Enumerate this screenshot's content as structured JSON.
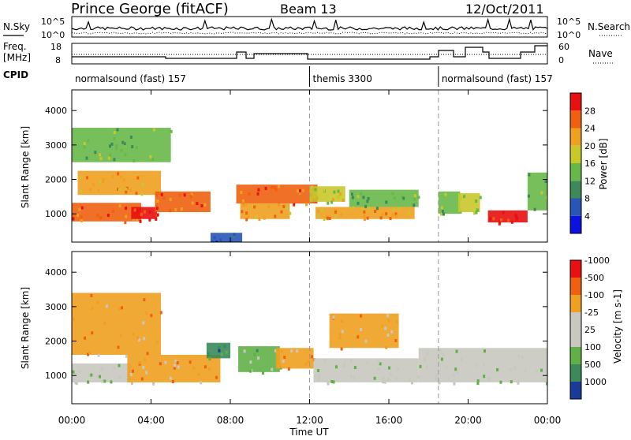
{
  "header": {
    "station": "Prince George (fitACF)",
    "beam": "Beam 13",
    "date": "12/Oct/2011"
  },
  "top_panels": {
    "nsky_label": "N.Sky",
    "nsky_ticks": [
      "10^5",
      "10^0"
    ],
    "nsearch_label": "N.Search",
    "nsearch_ticks": [
      "10^5",
      "10^0"
    ],
    "freq_label": "Freq.",
    "freq_unit": "[MHz]",
    "freq_ticks": [
      "18",
      "8"
    ],
    "nave_label": "Nave",
    "nave_ticks": [
      "60",
      "0"
    ],
    "cpid_label": "CPID",
    "cpid_segments": [
      {
        "label": "normalsound (fast) 157",
        "start_hr": 0.0
      },
      {
        "label": "themis 3300",
        "start_hr": 12.0
      },
      {
        "label": "normalsound (fast) 157",
        "start_hr": 18.5
      }
    ]
  },
  "chart_data": [
    {
      "type": "heatmap",
      "name": "power",
      "ylabel": "Slant Range [km]",
      "yticks": [
        "1000",
        "2000",
        "3000",
        "4000"
      ],
      "ylim": [
        180,
        4600
      ],
      "colorbar_label": "Power [dB]",
      "colorbar_ticks": [
        "4",
        "8",
        "12",
        "16",
        "20",
        "24",
        "28"
      ],
      "colors": [
        "#0a12e0",
        "#2a55b8",
        "#3c8a5a",
        "#68b848",
        "#c8c82a",
        "#f0a020",
        "#f06010",
        "#e81010"
      ],
      "bands": [
        {
          "start": 0.0,
          "end": 3.5,
          "range": [
            780,
            1320
          ],
          "level": 6
        },
        {
          "start": 0.3,
          "end": 4.5,
          "range": [
            1550,
            2250
          ],
          "level": 5
        },
        {
          "start": 3.0,
          "end": 4.3,
          "range": [
            850,
            1200
          ],
          "level": 7
        },
        {
          "start": 4.2,
          "end": 7.0,
          "range": [
            1050,
            1650
          ],
          "level": 6
        },
        {
          "start": 8.3,
          "end": 12.4,
          "range": [
            1300,
            1850
          ],
          "level": 6
        },
        {
          "start": 8.5,
          "end": 11.0,
          "range": [
            850,
            1300
          ],
          "level": 5
        },
        {
          "start": 12.0,
          "end": 13.8,
          "range": [
            1350,
            1800
          ],
          "level": 4
        },
        {
          "start": 12.3,
          "end": 17.3,
          "range": [
            850,
            1200
          ],
          "level": 5
        },
        {
          "start": 14.0,
          "end": 17.5,
          "range": [
            1200,
            1700
          ],
          "level": 3
        },
        {
          "start": 18.5,
          "end": 19.6,
          "range": [
            1000,
            1650
          ],
          "level": 3
        },
        {
          "start": 19.5,
          "end": 20.6,
          "range": [
            1050,
            1600
          ],
          "level": 4
        },
        {
          "start": 21.0,
          "end": 23.0,
          "range": [
            750,
            1100
          ],
          "level": 7
        },
        {
          "start": 23.0,
          "end": 24.0,
          "range": [
            1100,
            2200
          ],
          "level": 3
        },
        {
          "start": 0.0,
          "end": 5.0,
          "range": [
            2500,
            3500
          ],
          "level": 3
        },
        {
          "start": 7.0,
          "end": 8.6,
          "range": [
            180,
            450
          ],
          "level": 1
        }
      ]
    },
    {
      "type": "heatmap",
      "name": "velocity",
      "ylabel": "Slant Range [km]",
      "yticks": [
        "1000",
        "2000",
        "3000",
        "4000"
      ],
      "ylim": [
        180,
        4600
      ],
      "colorbar_label": "Velocity [m s-1]",
      "colorbar_ticks": [
        "1000",
        "500",
        "100",
        "25",
        "-25",
        "-100",
        "-500",
        "-1000"
      ],
      "colors": [
        "#1a3a9a",
        "#3a8a5a",
        "#60b048",
        "#c8c8c0",
        "#c8c8c0",
        "#f0a020",
        "#f06010",
        "#e81010"
      ],
      "bands": [
        {
          "start": 0.0,
          "end": 3.0,
          "range": [
            800,
            1350
          ],
          "level": 3
        },
        {
          "start": 2.8,
          "end": 7.5,
          "range": [
            800,
            1600
          ],
          "level": 5
        },
        {
          "start": 6.8,
          "end": 8.0,
          "range": [
            1500,
            1950
          ],
          "level": 1
        },
        {
          "start": 8.4,
          "end": 10.5,
          "range": [
            1100,
            1850
          ],
          "level": 2
        },
        {
          "start": 10.3,
          "end": 12.2,
          "range": [
            1200,
            1800
          ],
          "level": 5
        },
        {
          "start": 12.2,
          "end": 17.5,
          "range": [
            800,
            1500
          ],
          "level": 3
        },
        {
          "start": 17.5,
          "end": 24.0,
          "range": [
            800,
            1800
          ],
          "level": 3
        },
        {
          "start": 0.0,
          "end": 4.5,
          "range": [
            1600,
            3400
          ],
          "level": 5
        },
        {
          "start": 13.0,
          "end": 16.5,
          "range": [
            1800,
            2800
          ],
          "level": 5
        }
      ]
    }
  ],
  "x_axis": {
    "ticks": [
      "00:00",
      "04:00",
      "08:00",
      "12:00",
      "16:00",
      "20:00",
      "00:00"
    ],
    "label": "Time UT"
  }
}
